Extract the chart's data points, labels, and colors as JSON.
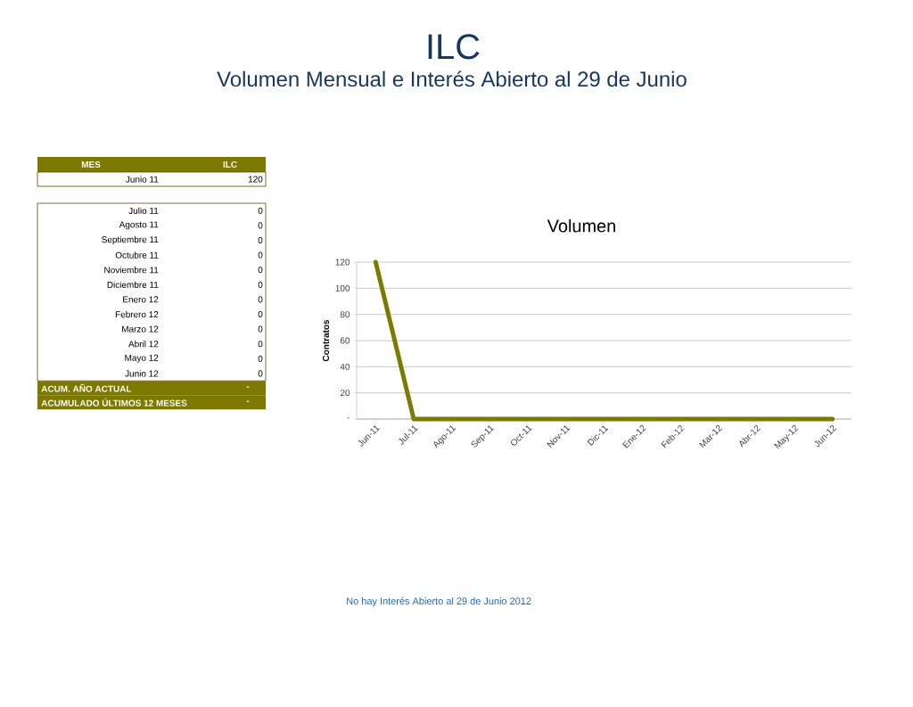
{
  "chart_data": [
    {
      "type": "other",
      "title": "ILC",
      "subtitle": "Volumen Mensual e Interés Abierto al 29 de Junio",
      "xlabel": "MES",
      "ylabel": "ILC",
      "categories": [
        "Junio 11",
        "Julio 11",
        "Agosto 11",
        "Septiembre 11",
        "Octubre 11",
        "Noviembre 11",
        "Diciembre 11",
        "Enero 12",
        "Febrero 12",
        "Marzo 12",
        "Abril 12",
        "Mayo 12",
        "Junio 12"
      ],
      "values": [
        120,
        0,
        0,
        0,
        0,
        0,
        0,
        0,
        0,
        0,
        0,
        0,
        0
      ],
      "data_labels": true,
      "annotations": [
        "ACUM. AÑO ACTUAL",
        "-",
        "ACUMULADO ÚLTIMOS 12 MESES",
        "-"
      ]
    },
    {
      "type": "line",
      "title": "Volumen",
      "ylabel": "Contratos",
      "categories": [
        "Jun-11",
        "Jul-11",
        "Ago-11",
        "Sep-11",
        "Oct-11",
        "Nov-11",
        "Dic-11",
        "Ene-12",
        "Feb-12",
        "Mar-12",
        "Abr-12",
        "May-12",
        "Jun-12"
      ],
      "values": [
        120,
        0,
        0,
        0,
        0,
        0,
        0,
        0,
        0,
        0,
        0,
        0,
        0
      ],
      "color": "#7b7b00",
      "ylim": [
        0,
        120
      ],
      "yticks": [
        {
          "value": 0,
          "label": "-"
        },
        20,
        40,
        60,
        80,
        100,
        120
      ],
      "grid": "y",
      "annotations": [
        "No hay Interés Abierto al 29 de Junio 2012"
      ]
    }
  ]
}
